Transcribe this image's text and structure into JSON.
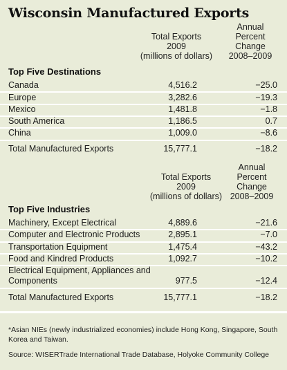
{
  "title": "Wisconsin Manufactured Exports",
  "headers": {
    "exports_line1": "Total Exports",
    "exports_line2": "2009",
    "exports_line3": "(millions of dollars)",
    "change_line1": "Annual",
    "change_line2": "Percent",
    "change_line3": "Change",
    "change_line4": "2008–2009"
  },
  "destinations": {
    "heading": "Top Five Destinations",
    "rows": [
      {
        "label": "Canada",
        "value": "4,516.2",
        "change": "−25.0"
      },
      {
        "label": "Europe",
        "value": "3,282.6",
        "change": "−19.3"
      },
      {
        "label": "Mexico",
        "value": "1,481.8",
        "change": "−1.8"
      },
      {
        "label": "South America",
        "value": "1,186.5",
        "change": "0.7"
      },
      {
        "label": "China",
        "value": "1,009.0",
        "change": "−8.6"
      }
    ],
    "total": {
      "label": "Total Manufactured Exports",
      "value": "15,777.1",
      "change": "−18.2"
    }
  },
  "industries": {
    "heading": "Top Five Industries",
    "rows": [
      {
        "label": "Machinery, Except Electrical",
        "value": "4,889.6",
        "change": "−21.6"
      },
      {
        "label": "Computer and Electronic Products",
        "value": "2,895.1",
        "change": "−7.0"
      },
      {
        "label": "Transportation Equipment",
        "value": "1,475.4",
        "change": "−43.2"
      },
      {
        "label": "Food and Kindred Products",
        "value": "1,092.7",
        "change": "−10.2"
      },
      {
        "label_line1": "Electrical Equipment, Appliances and",
        "label_line2": "Components",
        "value": "977.5",
        "change": "−12.4"
      }
    ],
    "total": {
      "label": "Total Manufactured Exports",
      "value": "15,777.1",
      "change": "−18.2"
    }
  },
  "footnotes": {
    "note": "*Asian NIEs (newly industrialized economies) include Hong Kong, Singapore, South Korea and Taiwan.",
    "source": "Source: WISERTrade International Trade Database, Holyoke Community College"
  }
}
